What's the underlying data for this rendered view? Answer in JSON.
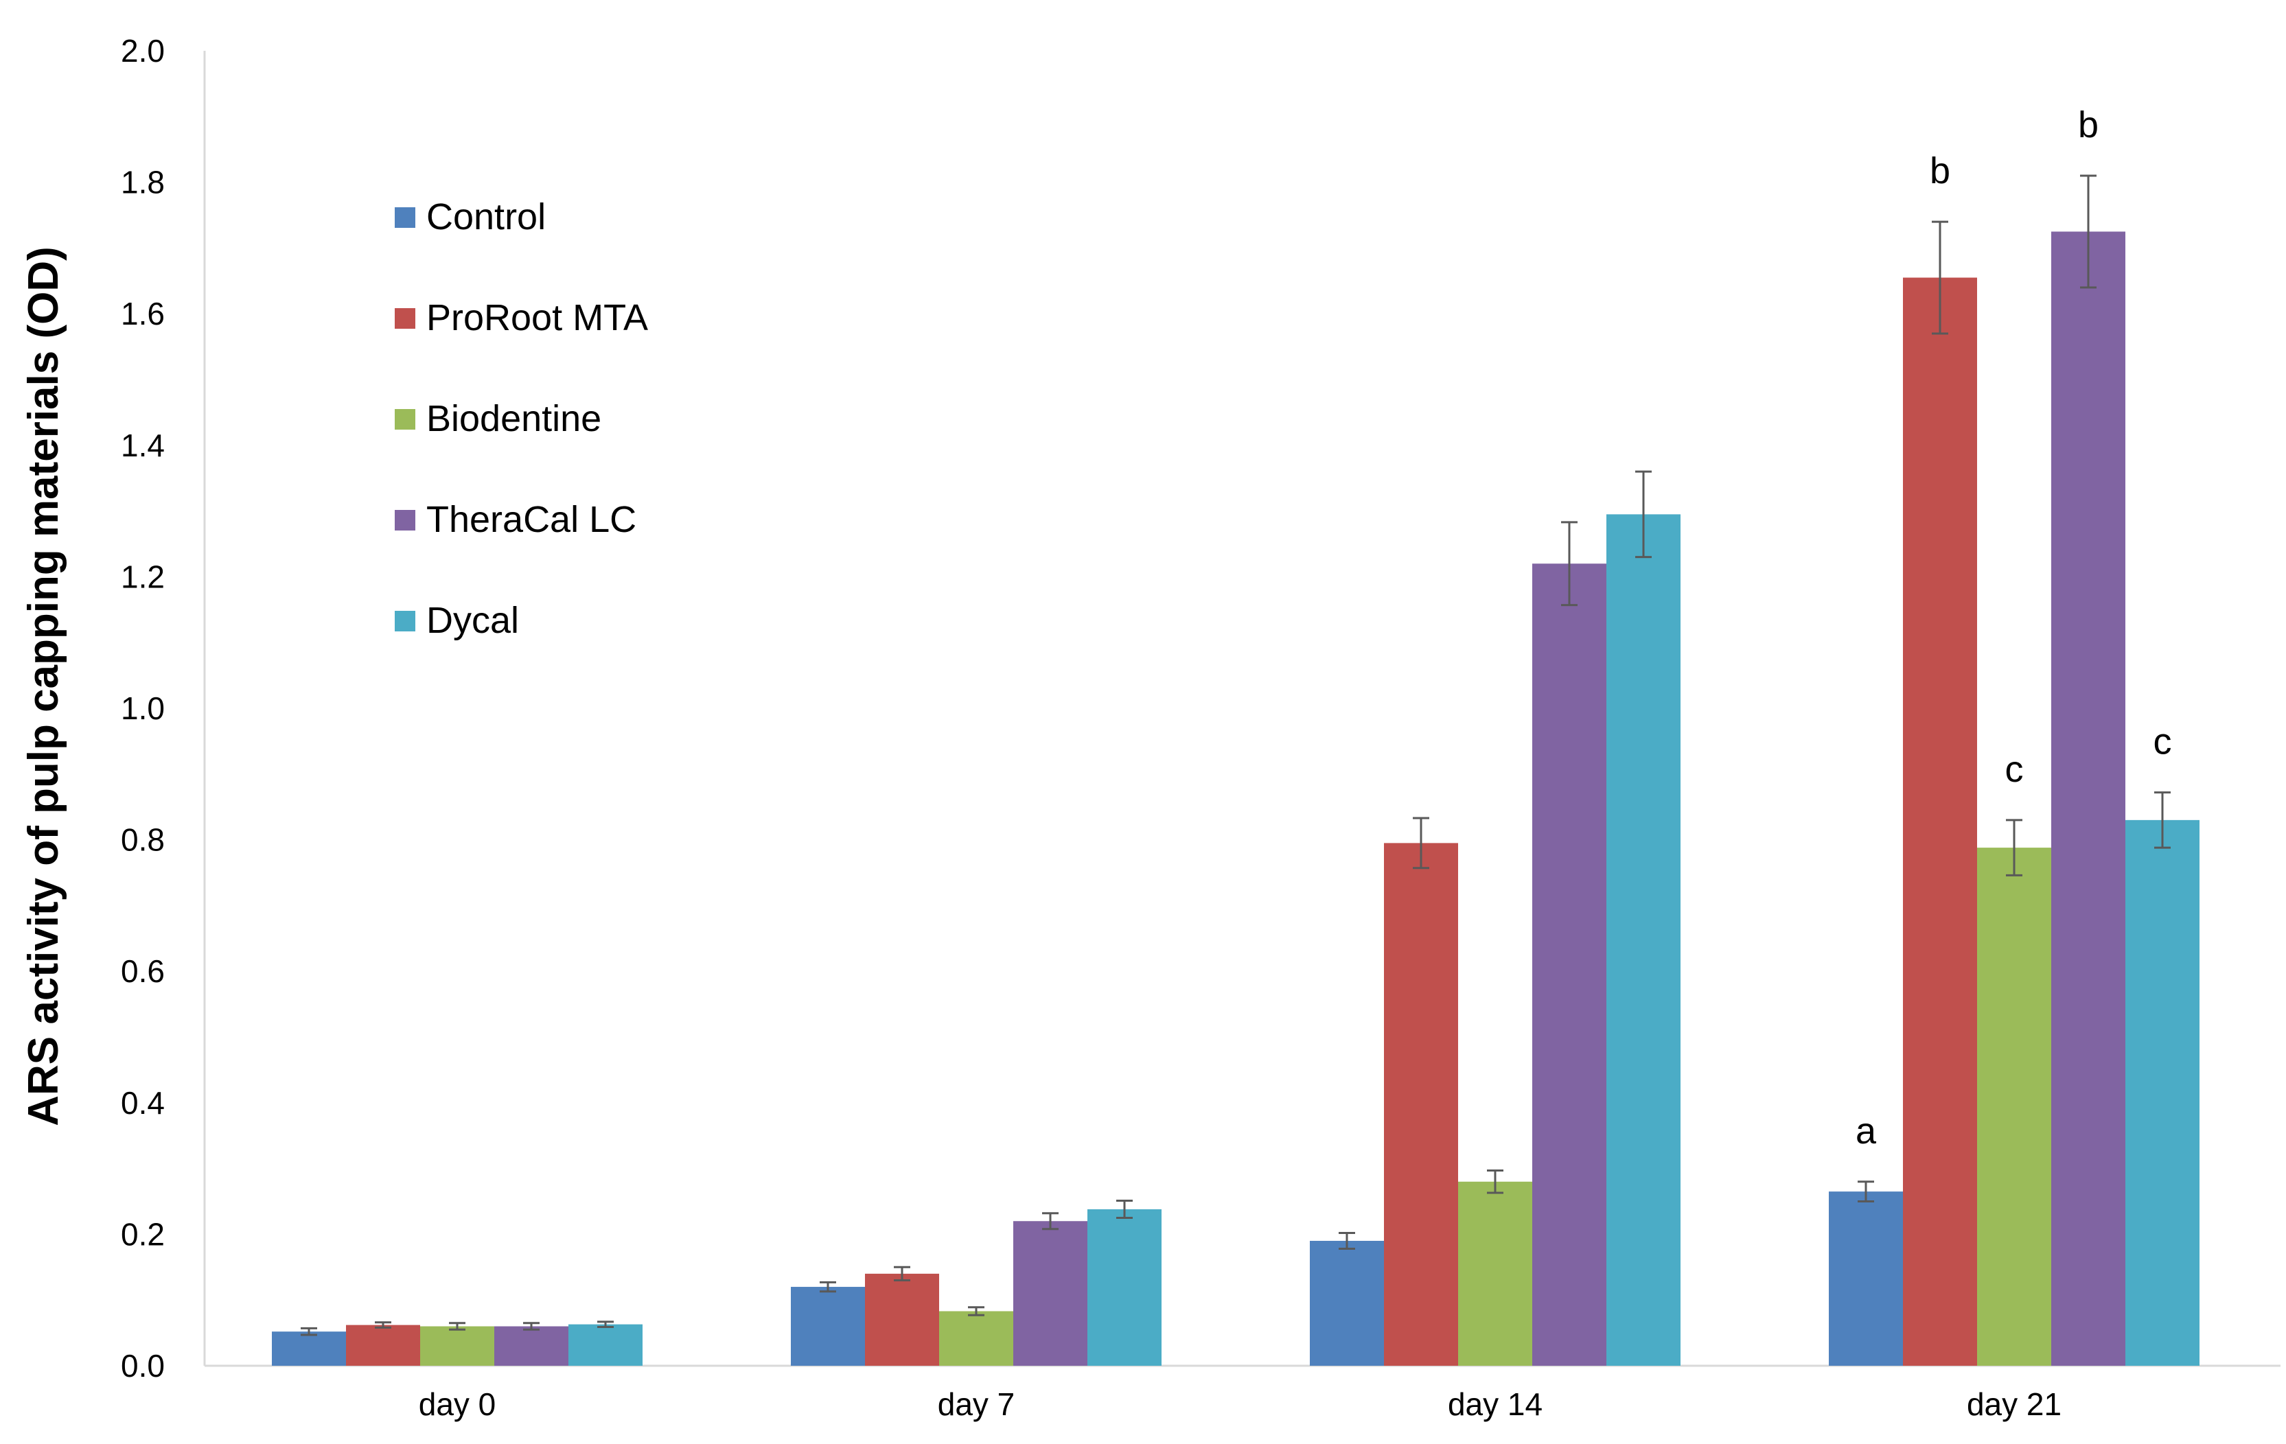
{
  "chart_data": {
    "type": "bar",
    "title": "",
    "xlabel": "",
    "ylabel": "ARS activity of pulp capping materials (OD)",
    "ylim": [
      0,
      2.0
    ],
    "yticks": [
      "0.0",
      "0.2",
      "0.4",
      "0.6",
      "0.8",
      "1.0",
      "1.2",
      "1.4",
      "1.6",
      "1.8",
      "2.0"
    ],
    "categories": [
      "day 0",
      "day 7",
      "day 14",
      "day 21"
    ],
    "legend_position": "upper-left",
    "series": [
      {
        "name": "Control",
        "color": "#4F81BD",
        "values": [
          0.052,
          0.12,
          0.19,
          0.265
        ],
        "errors": [
          0.005,
          0.007,
          0.012,
          0.015
        ]
      },
      {
        "name": "ProRoot MTA",
        "color": "#C0504D",
        "values": [
          0.062,
          0.14,
          0.795,
          1.655
        ],
        "errors": [
          0.004,
          0.01,
          0.038,
          0.085
        ]
      },
      {
        "name": "Biodentine",
        "color": "#9BBB59",
        "values": [
          0.06,
          0.083,
          0.28,
          0.788
        ],
        "errors": [
          0.005,
          0.006,
          0.017,
          0.042
        ]
      },
      {
        "name": "TheraCal LC",
        "color": "#8064A2",
        "values": [
          0.06,
          0.22,
          1.22,
          1.725
        ],
        "errors": [
          0.005,
          0.012,
          0.063,
          0.085
        ]
      },
      {
        "name": "Dycal",
        "color": "#4BACC6",
        "values": [
          0.063,
          0.238,
          1.295,
          0.83
        ],
        "errors": [
          0.004,
          0.013,
          0.065,
          0.042
        ]
      }
    ],
    "annotations": [
      {
        "category": "day 21",
        "series": "Control",
        "text": "a"
      },
      {
        "category": "day 21",
        "series": "ProRoot MTA",
        "text": "b"
      },
      {
        "category": "day 21",
        "series": "Biodentine",
        "text": "c"
      },
      {
        "category": "day 21",
        "series": "TheraCal LC",
        "text": "b"
      },
      {
        "category": "day 21",
        "series": "Dycal",
        "text": "c"
      }
    ]
  }
}
